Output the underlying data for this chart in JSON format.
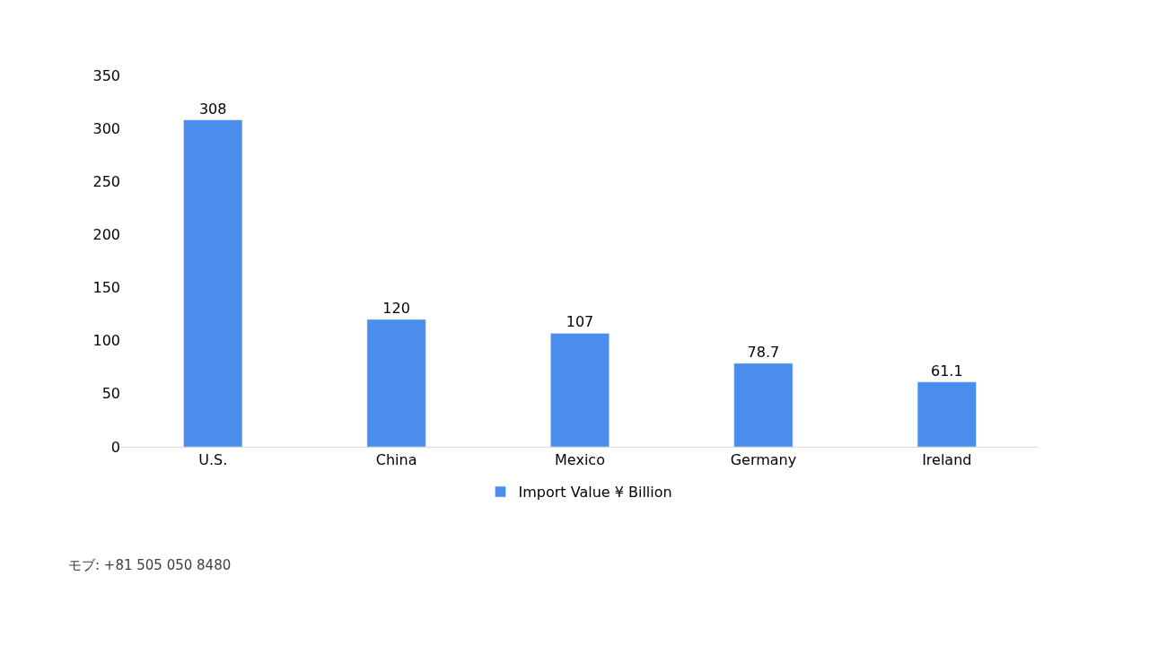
{
  "chart_data": {
    "type": "bar",
    "categories": [
      "U.S.",
      "China",
      "Mexico",
      "Germany",
      "Ireland"
    ],
    "series": [
      {
        "name": "Import Value ¥ Billion",
        "color": "#4a8ded",
        "values": [
          308,
          120,
          107,
          78.7,
          61.1
        ]
      }
    ],
    "ylim": [
      0,
      350
    ],
    "yticks": [
      0,
      50,
      100,
      150,
      200,
      250,
      300,
      350
    ],
    "legend": "bottom",
    "data_labels": true,
    "annotations": [
      "モブ: +81 505 050 8480"
    ]
  }
}
